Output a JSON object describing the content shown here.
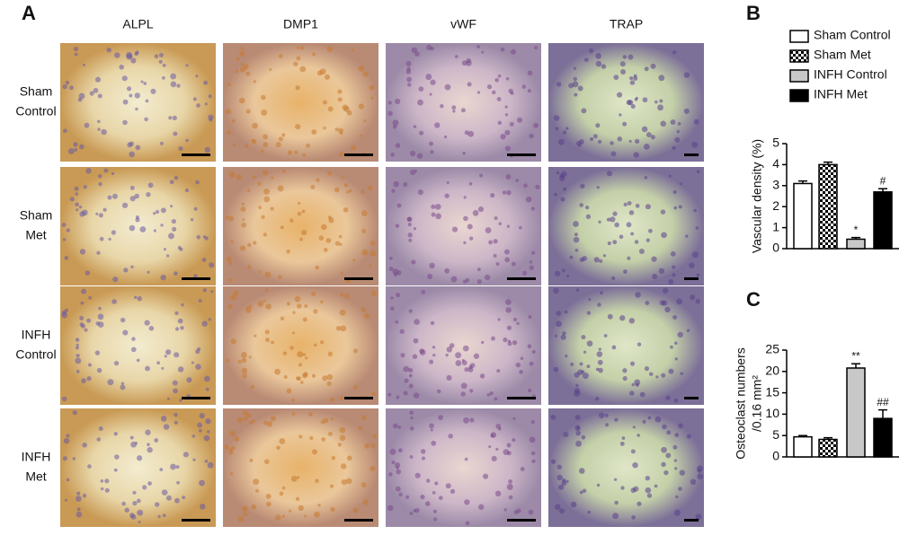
{
  "panel_a": {
    "label": "A",
    "columns": [
      "ALPL",
      "DMP1",
      "vWF",
      "TRAP"
    ],
    "rows": [
      [
        "Sham",
        "Control"
      ],
      [
        "Sham",
        "Met"
      ],
      [
        "INFH",
        "Control"
      ],
      [
        "INFH",
        "Met"
      ]
    ]
  },
  "chart_data": [
    {
      "type": "bar",
      "panel": "B",
      "ylabel": [
        "Vascular density (%)"
      ],
      "categories": [
        "Sham Control",
        "Sham Met",
        "INFH Control",
        "INFH Met"
      ],
      "values": [
        3.1,
        4.0,
        0.45,
        2.7
      ],
      "errors": [
        0.12,
        0.12,
        0.08,
        0.15
      ],
      "annotations": [
        null,
        null,
        "*",
        "#"
      ],
      "fills": [
        "white",
        "checkered",
        "light gray",
        "black"
      ],
      "ylim": [
        0,
        5
      ],
      "yticks": [
        0,
        1,
        2,
        3,
        4,
        5
      ]
    },
    {
      "type": "bar",
      "panel": "C",
      "ylabel": [
        "Osteoclast numbers",
        "/0.16 mm²"
      ],
      "values": [
        4.7,
        4.1,
        20.8,
        9.0
      ],
      "errors": [
        0.3,
        0.4,
        1.0,
        2.0
      ],
      "annotations": [
        null,
        null,
        "**",
        "##"
      ],
      "fills": [
        "white",
        "checkered",
        "light gray",
        "black"
      ],
      "ylim": [
        0,
        25
      ],
      "yticks": [
        0,
        5,
        10,
        15,
        20,
        25
      ]
    }
  ]
}
